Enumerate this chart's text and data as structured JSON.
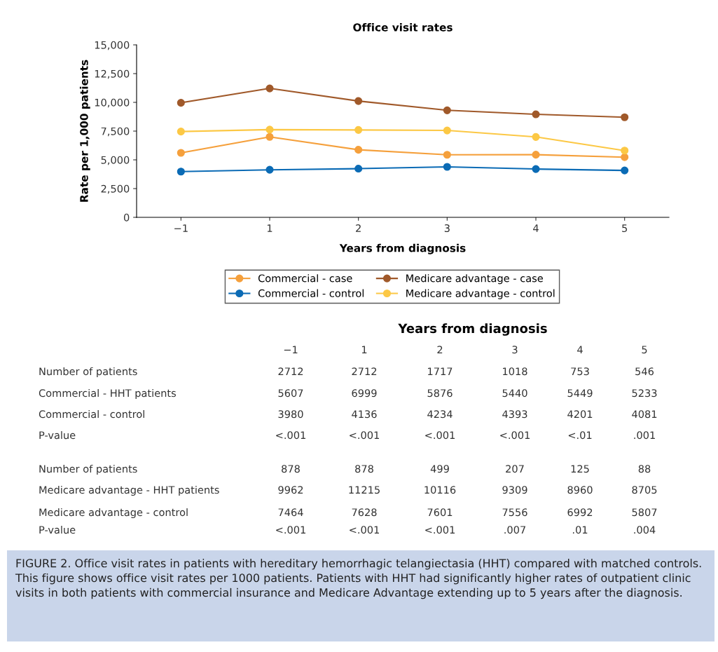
{
  "chart_data": {
    "type": "line",
    "title": "Office visit rates",
    "xlabel": "Years from diagnosis",
    "ylabel": "Rate per 1,000 patients",
    "categories": [
      "−1",
      "1",
      "2",
      "3",
      "4",
      "5"
    ],
    "series": [
      {
        "name": "Commercial - case",
        "color": "#f5a03c",
        "values": [
          5607,
          6999,
          5876,
          5440,
          5449,
          5233
        ]
      },
      {
        "name": "Commercial - control",
        "color": "#0b6bb5",
        "values": [
          3980,
          4136,
          4234,
          4393,
          4201,
          4081
        ]
      },
      {
        "name": "Medicare advantage - case",
        "color": "#a0592a",
        "values": [
          9962,
          11215,
          10116,
          9309,
          8960,
          8705
        ]
      },
      {
        "name": "Medicare advantage - control",
        "color": "#fcc845",
        "values": [
          7464,
          7628,
          7601,
          7556,
          6992,
          5807
        ]
      }
    ],
    "ylim": [
      0,
      15000
    ],
    "yticks": [
      0,
      {
        "value": 2500,
        "label": "2,500"
      },
      {
        "value": 5000,
        "label": "5,000"
      },
      {
        "value": 7500,
        "label": "7,500"
      },
      {
        "value": 10000,
        "label": "10,000"
      },
      {
        "value": 12500,
        "label": "12,500"
      },
      {
        "value": 15000,
        "label": "15,000"
      }
    ],
    "marker": "circle",
    "line_style": "solid",
    "grid": false,
    "legend": "bottom",
    "annotations": [
      "Years from diagnosis",
      "Number of patients",
      "2712",
      "2712",
      "1717",
      "1018",
      "753",
      "546",
      "Commercial - HHT patients",
      "5607",
      "6999",
      "5876",
      "5440",
      "5449",
      "5233",
      "Commercial - control",
      "3980",
      "4136",
      "4234",
      "4393",
      "4201",
      "4081",
      "P-value",
      "<.001",
      "<.001",
      "<.001",
      "<.001",
      "<.01",
      ".001",
      "Number of patients",
      "878",
      "878",
      "499",
      "207",
      "125",
      "88",
      "Medicare advantage - HHT patients",
      "9962",
      "11215",
      "10116",
      "9309",
      "8960",
      "8705",
      "Medicare advantage - control",
      "7464",
      "7628",
      "7601",
      "7556",
      "6992",
      "5807",
      "P-value",
      "<.001",
      "<.001",
      "<.001",
      ".007",
      ".01",
      ".004",
      "FIGURE 2. Office visit rates in patients with hereditary hemorrhagic telangiectasia (HHT) compared with matched controls. This figure shows office visit rates per 1000 patients. Patients with HHT had significantly higher rates of outpatient clinic visits in both patients with commercial insurance and Medicare Advantage extending up to 5 years after the diagnosis."
    ]
  }
}
